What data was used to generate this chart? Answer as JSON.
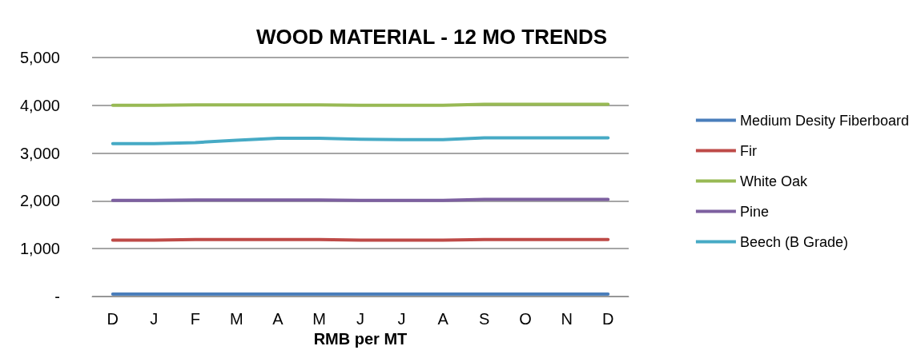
{
  "chart_data": {
    "type": "line",
    "title": "WOOD MATERIAL - 12 MO TRENDS",
    "xlabel": "RMB per MT",
    "categories": [
      "D",
      "J",
      "F",
      "M",
      "A",
      "M",
      "J",
      "J",
      "A",
      "S",
      "O",
      "N",
      "D"
    ],
    "series": [
      {
        "name": "Medium Desity Fiberboard",
        "color": "#4a7ebb",
        "values": [
          50,
          50,
          50,
          50,
          50,
          50,
          50,
          50,
          50,
          50,
          50,
          50,
          50
        ]
      },
      {
        "name": "Fir",
        "color": "#be4b48",
        "values": [
          1180,
          1180,
          1190,
          1190,
          1190,
          1190,
          1180,
          1180,
          1180,
          1190,
          1190,
          1190,
          1190
        ]
      },
      {
        "name": "White Oak",
        "color": "#98b954",
        "values": [
          4000,
          4000,
          4010,
          4010,
          4010,
          4010,
          4000,
          4000,
          4000,
          4020,
          4020,
          4020,
          4020
        ]
      },
      {
        "name": "Pine",
        "color": "#7d60a0",
        "values": [
          2010,
          2010,
          2020,
          2020,
          2020,
          2020,
          2010,
          2010,
          2010,
          2030,
          2030,
          2030,
          2030
        ]
      },
      {
        "name": "Beech (B Grade)",
        "color": "#46aac5",
        "values": [
          3200,
          3200,
          3220,
          3270,
          3310,
          3310,
          3290,
          3280,
          3280,
          3320,
          3320,
          3320,
          3320
        ]
      }
    ],
    "ylim": [
      0,
      5000
    ],
    "yticks": [
      {
        "value": 0,
        "label": "-"
      },
      {
        "value": 1000,
        "label": "1,000"
      },
      {
        "value": 2000,
        "label": "2,000"
      },
      {
        "value": 3000,
        "label": "3,000"
      },
      {
        "value": 4000,
        "label": "4,000"
      },
      {
        "value": 5000,
        "label": "5,000"
      }
    ],
    "grid": "y",
    "legend": "right",
    "marker": "none",
    "line_style": "solid"
  }
}
